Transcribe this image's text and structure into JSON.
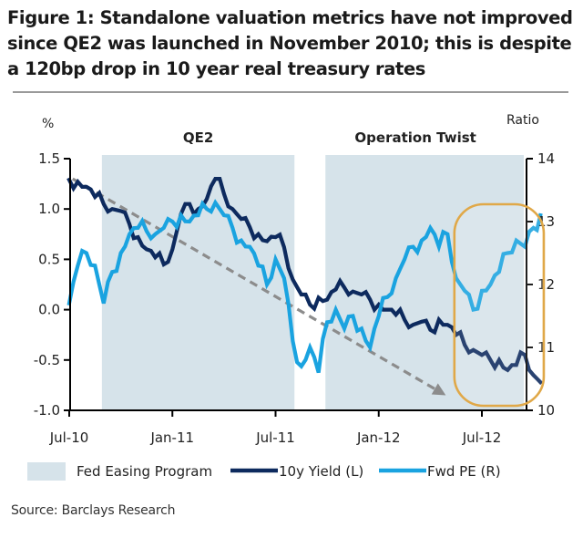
{
  "title": "Figure 1: Standalone valuation metrics have not improved since QE2 was launched in November 2010; this is despite a 120bp drop in 10 year real treasury rates",
  "source": "Source: Barclays Research",
  "colors": {
    "yield": "#0d2a5e",
    "fwd_pe": "#1aa3e0",
    "easing": "#d6e3ea",
    "trend_arrow": "#8c8c8c",
    "highlight_oval": "#e0a848"
  },
  "chart_data": {
    "type": "line",
    "title": "Figure 1: Standalone valuation metrics have not improved since QE2 was launched in November 2010; this is despite a 120bp drop in 10 year real treasury rates",
    "xlabel": "",
    "ylabel": "%",
    "ylabel_right": "Ratio",
    "x_unit": "months since Jul-10",
    "xlim": [
      0,
      27.6
    ],
    "ylim": [
      -1.0,
      1.5
    ],
    "ylim_right": [
      10,
      14
    ],
    "x_ticks": [
      {
        "label": "Jul-10",
        "value": 0
      },
      {
        "label": "Jan-11",
        "value": 6
      },
      {
        "label": "Jul-11",
        "value": 12
      },
      {
        "label": "Jan-12",
        "value": 18
      },
      {
        "label": "Jul-12",
        "value": 24
      }
    ],
    "y_ticks": [
      {
        "label": "1.5",
        "value": 1.5
      },
      {
        "label": "1.0",
        "value": 1.0
      },
      {
        "label": "0.5",
        "value": 0.5
      },
      {
        "label": "0.0",
        "value": 0.0
      },
      {
        "label": "-0.5",
        "value": -0.5
      },
      {
        "label": "-1.0",
        "value": -1.0
      }
    ],
    "y_ticks_right": [
      {
        "label": "14",
        "value": 14
      },
      {
        "label": "13",
        "value": 13
      },
      {
        "label": "12",
        "value": 12
      },
      {
        "label": "11",
        "value": 11
      },
      {
        "label": "10",
        "value": 10
      }
    ],
    "shaded_regions": [
      {
        "label": "QE2",
        "start": 1.9,
        "end": 13.1
      },
      {
        "label": "Operation Twist",
        "start": 14.9,
        "end": 26.5
      }
    ],
    "series": [
      {
        "name": "10y Yield (L)",
        "axis": "left",
        "x": [
          0,
          0.5,
          1,
          1.5,
          2,
          2.5,
          3,
          3.5,
          4,
          4.5,
          5,
          5.5,
          6,
          6.5,
          7,
          7.5,
          8,
          8.5,
          9,
          9.5,
          10,
          10.5,
          11,
          11.5,
          12,
          12.5,
          13,
          13.5,
          14,
          14.5,
          15,
          15.5,
          16,
          16.5,
          17,
          17.5,
          18,
          18.5,
          19,
          19.5,
          20,
          20.5,
          21,
          21.5,
          22,
          22.5,
          23,
          23.5,
          24,
          24.5,
          25,
          25.5,
          26,
          26.5,
          27,
          27.4
        ],
        "values": [
          1.29,
          1.27,
          1.22,
          1.12,
          1.05,
          1.0,
          0.98,
          0.85,
          0.72,
          0.6,
          0.52,
          0.45,
          0.6,
          0.95,
          1.05,
          1.0,
          1.1,
          1.3,
          1.15,
          1.0,
          0.9,
          0.82,
          0.75,
          0.68,
          0.72,
          0.62,
          0.3,
          0.15,
          0.05,
          0.12,
          0.1,
          0.2,
          0.22,
          0.18,
          0.15,
          0.1,
          0.05,
          0.0,
          -0.05,
          -0.1,
          -0.15,
          -0.12,
          -0.2,
          -0.1,
          -0.15,
          -0.25,
          -0.35,
          -0.4,
          -0.45,
          -0.5,
          -0.5,
          -0.6,
          -0.55,
          -0.45,
          -0.65,
          -0.72
        ]
      },
      {
        "name": "Fwd PE (R)",
        "axis": "right",
        "x": [
          0,
          0.5,
          1,
          1.5,
          2,
          2.5,
          3,
          3.5,
          4,
          4.5,
          5,
          5.5,
          6,
          6.5,
          7,
          7.5,
          8,
          8.5,
          9,
          9.5,
          10,
          10.5,
          11,
          11.5,
          12,
          12.5,
          13,
          13.5,
          14,
          14.5,
          15,
          15.5,
          16,
          16.5,
          17,
          17.5,
          18,
          18.5,
          19,
          19.5,
          20,
          20.5,
          21,
          21.5,
          22,
          22.5,
          23,
          23.5,
          24,
          24.5,
          25,
          25.5,
          26,
          26.5,
          27,
          27.4
        ],
        "values": [
          11.7,
          12.3,
          12.5,
          12.3,
          11.7,
          12.2,
          12.5,
          12.8,
          12.9,
          12.85,
          12.8,
          12.9,
          13.0,
          13.1,
          13.0,
          13.1,
          13.2,
          13.3,
          13.1,
          12.9,
          12.7,
          12.6,
          12.3,
          12.0,
          12.4,
          12.1,
          11.1,
          10.7,
          11.0,
          10.6,
          11.4,
          11.6,
          11.3,
          11.5,
          11.3,
          11.0,
          11.5,
          11.8,
          12.1,
          12.4,
          12.6,
          12.7,
          12.9,
          12.6,
          12.8,
          12.1,
          11.9,
          11.6,
          11.9,
          12.0,
          12.2,
          12.5,
          12.7,
          12.6,
          12.9,
          13.1
        ]
      }
    ],
    "annotations": [
      {
        "type": "dashed-arrow",
        "label": "downtrend",
        "from": {
          "x": 0.2,
          "y": 1.3
        },
        "to": {
          "x": 21.9,
          "y": -0.85
        }
      },
      {
        "type": "oval",
        "label": "highlight",
        "x_range": [
          22.4,
          27.6
        ]
      }
    ],
    "legend": {
      "placement": "bottom",
      "entries": [
        {
          "label": "Fed Easing Program",
          "kind": "area"
        },
        {
          "label": "10y Yield (L)",
          "kind": "line"
        },
        {
          "label": "Fwd PE (R)",
          "kind": "line"
        }
      ]
    },
    "grid": false
  }
}
